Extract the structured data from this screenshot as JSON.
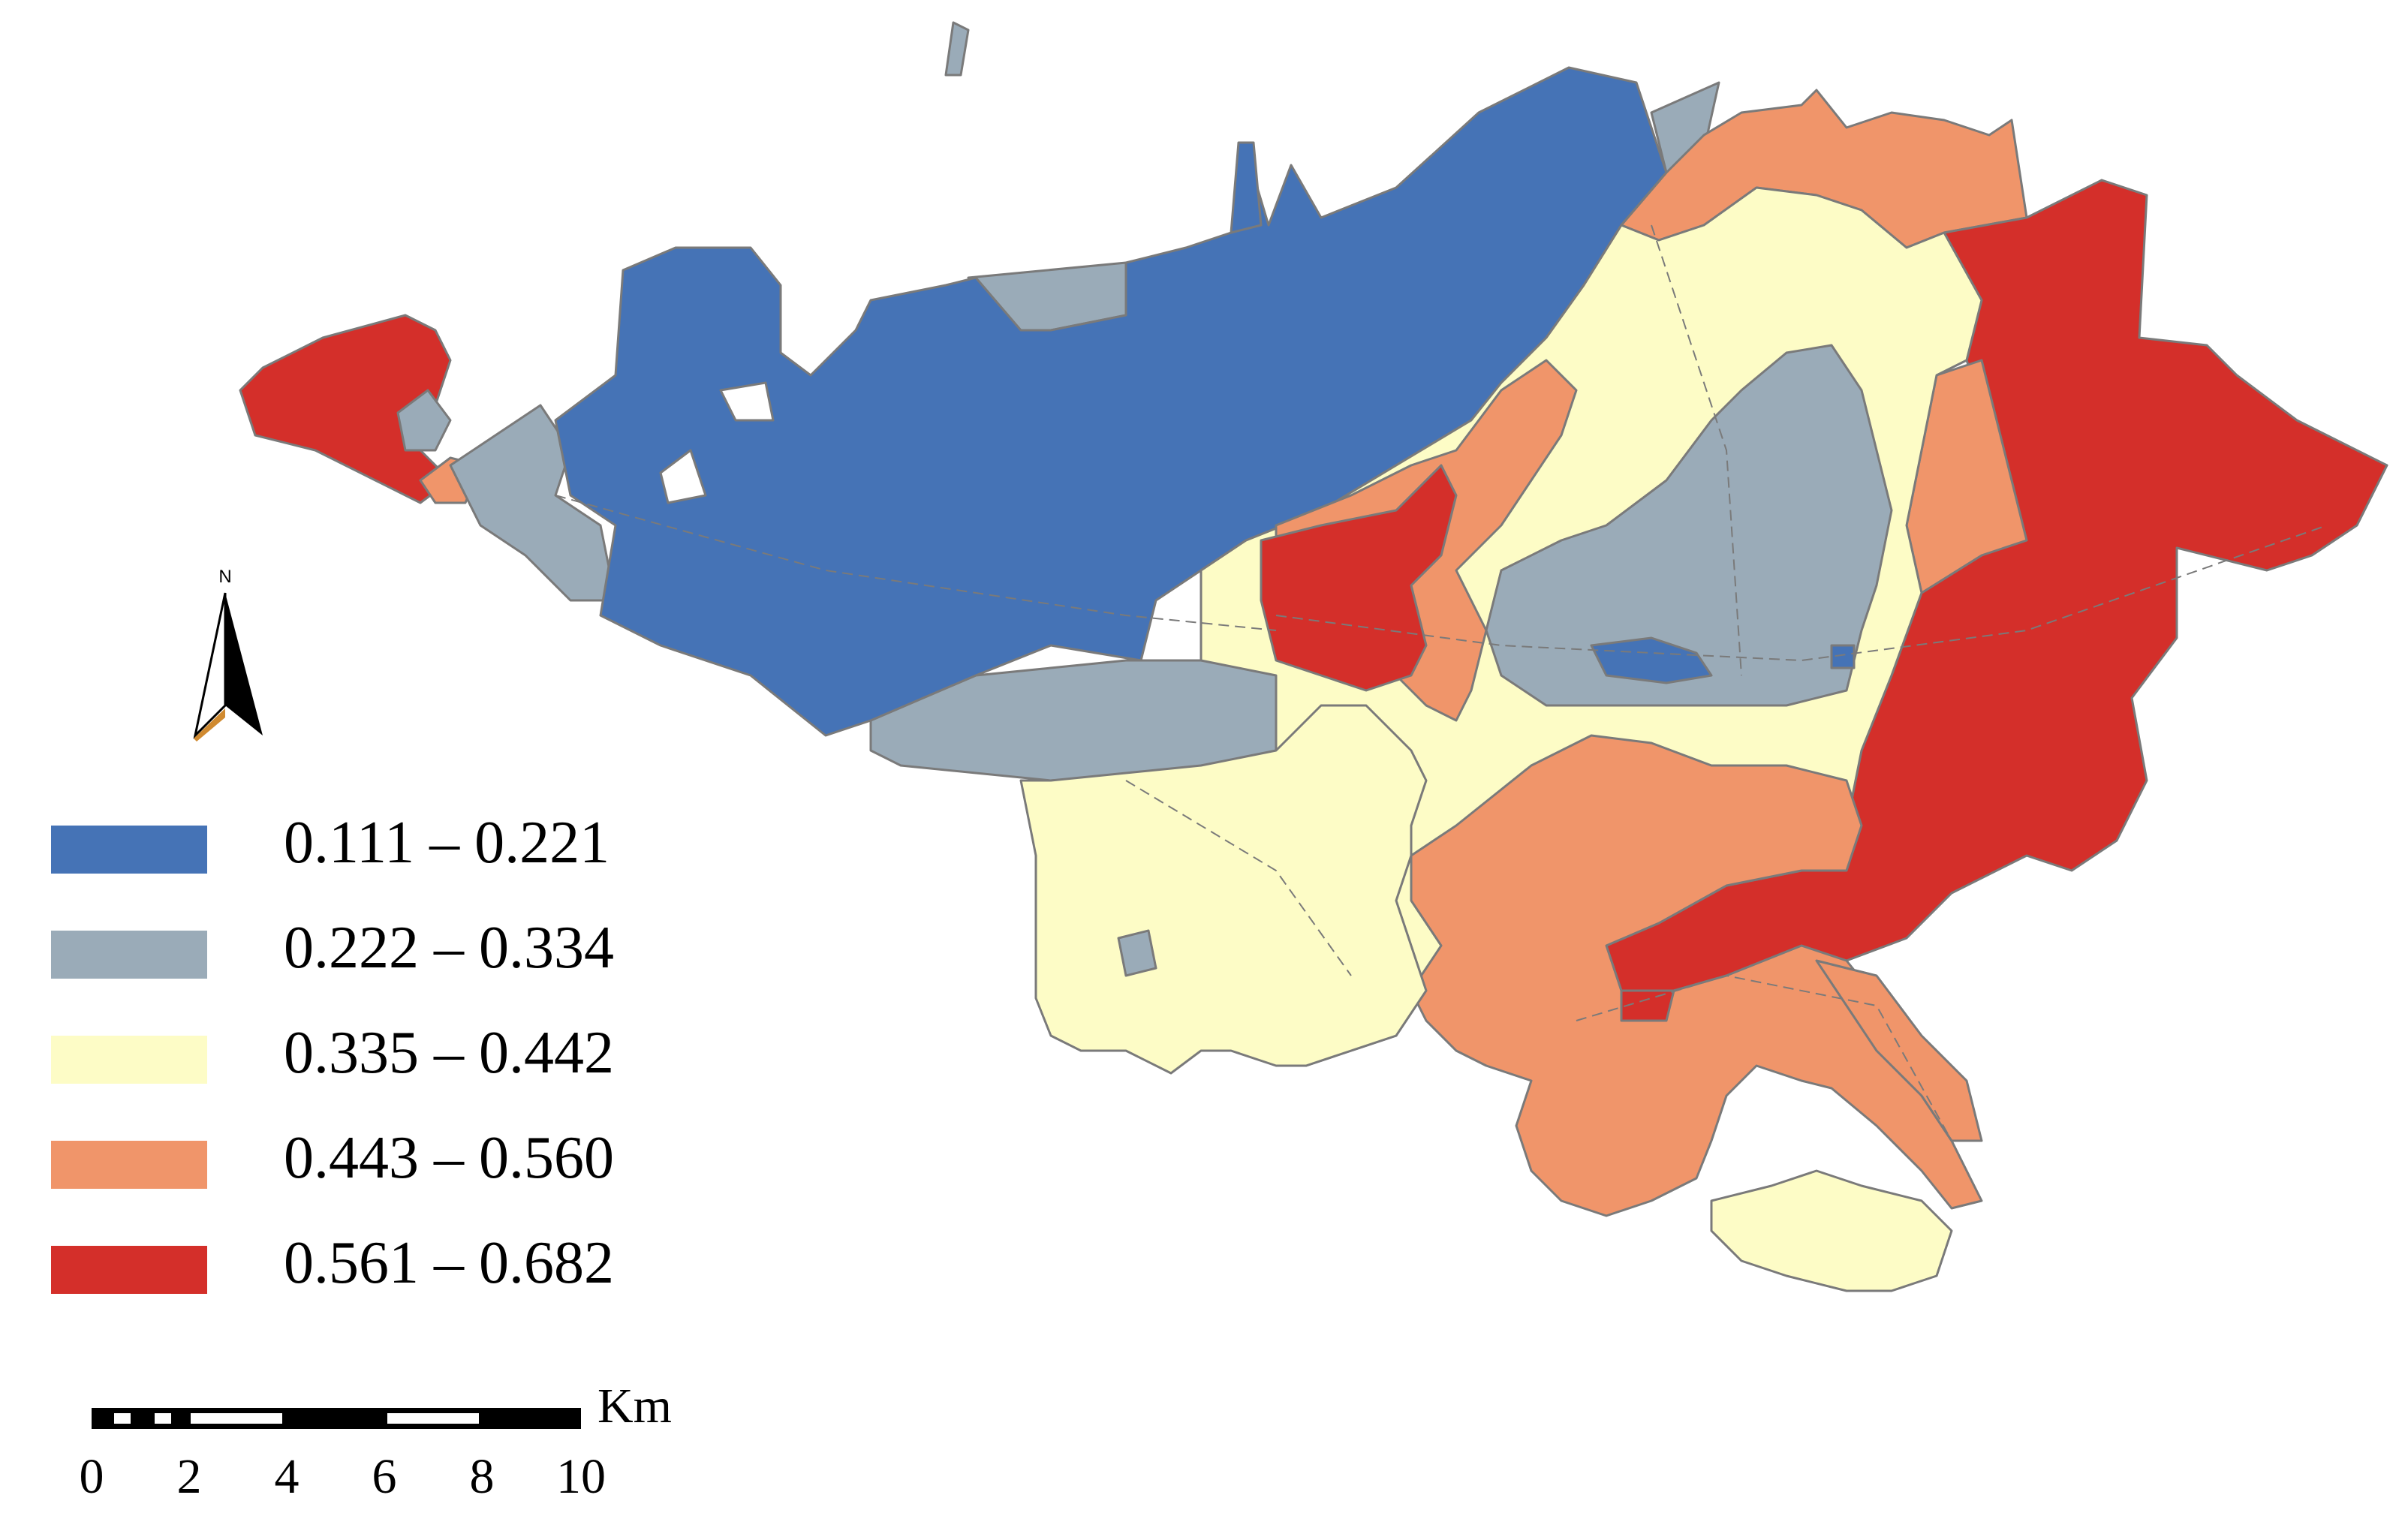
{
  "map": {
    "north_arrow_label": "N",
    "colors": {
      "class1": "#4573b6",
      "class2": "#9aabb8",
      "class3": "#fdfcc6",
      "class4": "#f0956a",
      "class5": "#d42f2a",
      "line": "#7a7a7a"
    }
  },
  "legend": {
    "items": [
      {
        "label": "0.111 – 0.221",
        "color": "#4573b6"
      },
      {
        "label": "0.222 – 0.334",
        "color": "#9aabb8"
      },
      {
        "label": "0.335 – 0.442",
        "color": "#fdfcc6"
      },
      {
        "label": "0.443 – 0.560",
        "color": "#f0956a"
      },
      {
        "label": "0.561 – 0.682",
        "color": "#d42f2a"
      }
    ]
  },
  "scale_bar": {
    "unit": "Km",
    "ticks": [
      "0",
      "2",
      "4",
      "6",
      "8",
      "10"
    ]
  }
}
